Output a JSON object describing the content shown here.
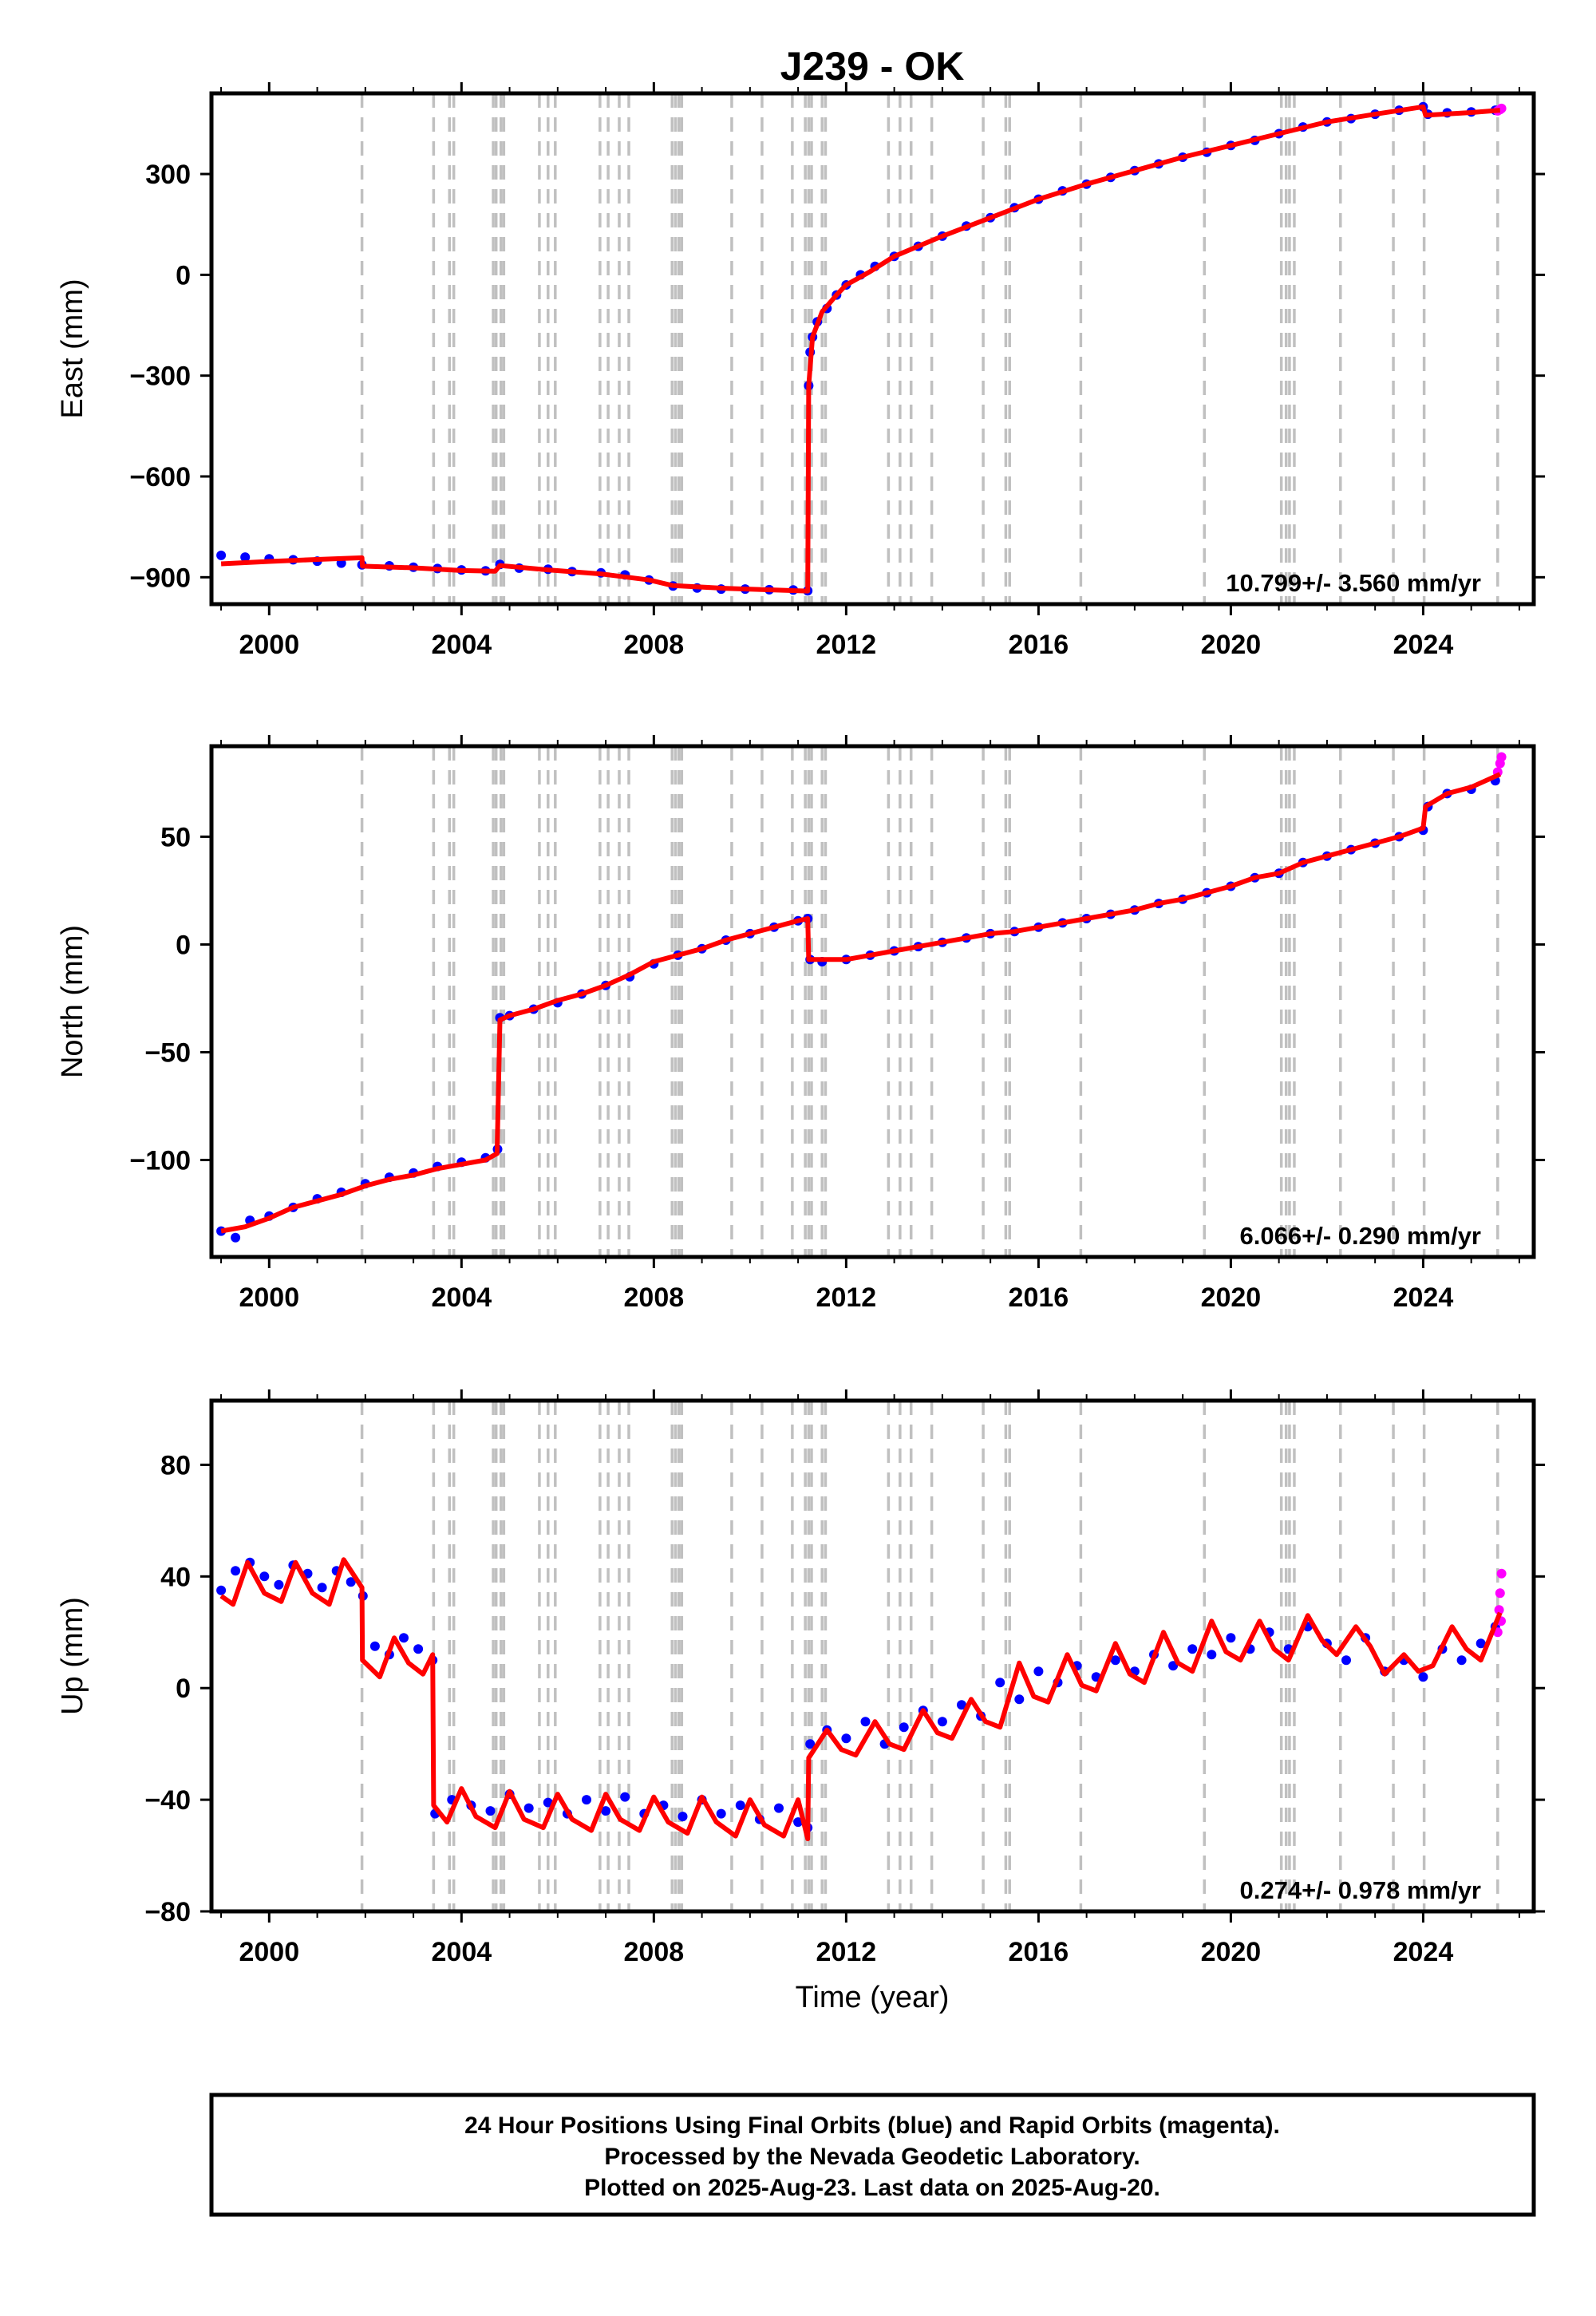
{
  "title": "J239 - OK",
  "xlabel": "Time (year)",
  "footer": {
    "line1": "24 Hour Positions Using Final Orbits (blue) and Rapid Orbits (magenta).",
    "line2": "Processed by the Nevada Geodetic Laboratory.",
    "line3": "Plotted on 2025-Aug-23. Last data on 2025-Aug-20."
  },
  "colors": {
    "final_points": "#0000ff",
    "rapid_points": "#ff00ff",
    "model_line": "#ff0000",
    "event_lines": "#c0c0c0"
  },
  "x_ticks": [
    "2000",
    "2004",
    "2008",
    "2012",
    "2016",
    "2020",
    "2024"
  ],
  "event_years": [
    2001.93,
    2003.42,
    2003.75,
    2003.84,
    2004.66,
    2004.72,
    2004.82,
    2004.88,
    2005.62,
    2005.8,
    2005.95,
    2006.88,
    2007.05,
    2007.28,
    2007.48,
    2008.38,
    2008.45,
    2008.52,
    2008.58,
    2009.62,
    2010.25,
    2010.88,
    2011.15,
    2011.22,
    2011.28,
    2011.5,
    2011.57,
    2012.88,
    2013.12,
    2013.35,
    2013.78,
    2014.85,
    2015.32,
    2015.4,
    2016.88,
    2019.45,
    2021.05,
    2021.15,
    2021.22,
    2021.32,
    2022.28,
    2023.38,
    2024.02,
    2025.55
  ],
  "chart_data": [
    {
      "type": "scatter",
      "component": "East",
      "ylabel": "East (mm)",
      "xlim": [
        1998.8,
        2026.3
      ],
      "ylim": [
        -980,
        540
      ],
      "y_ticks": [
        "300",
        "0",
        "−300",
        "−600",
        "−900"
      ],
      "rate_text": "10.799+/- 3.560 mm/yr",
      "series": [
        {
          "role": "final",
          "x": [
            1999.0,
            1999.5,
            2000.0,
            2000.5,
            2001.0,
            2001.5,
            2001.93,
            2002.5,
            2003.0,
            2003.5,
            2004.0,
            2004.5,
            2004.8,
            2005.2,
            2005.8,
            2006.3,
            2006.9,
            2007.4,
            2007.9,
            2008.4,
            2008.9,
            2009.4,
            2009.9,
            2010.4,
            2010.9,
            2011.2,
            2011.22,
            2011.25,
            2011.3,
            2011.4,
            2011.6,
            2011.8,
            2012.0,
            2012.3,
            2012.6,
            2013.0,
            2013.5,
            2014.0,
            2014.5,
            2015.0,
            2015.5,
            2016.0,
            2016.5,
            2017.0,
            2017.5,
            2018.0,
            2018.5,
            2019.0,
            2019.5,
            2020.0,
            2020.5,
            2021.0,
            2021.5,
            2022.0,
            2022.5,
            2023.0,
            2023.5,
            2024.0,
            2024.1,
            2024.5,
            2025.0,
            2025.5
          ],
          "y": [
            -835,
            -840,
            -845,
            -848,
            -852,
            -858,
            -863,
            -866,
            -870,
            -874,
            -878,
            -881,
            -862,
            -873,
            -876,
            -883,
            -887,
            -893,
            -908,
            -926,
            -932,
            -935,
            -935,
            -937,
            -938,
            -940,
            -330,
            -230,
            -185,
            -140,
            -100,
            -60,
            -30,
            0,
            25,
            55,
            85,
            115,
            145,
            170,
            200,
            225,
            250,
            270,
            290,
            310,
            330,
            350,
            365,
            385,
            400,
            420,
            440,
            455,
            465,
            478,
            490,
            500,
            478,
            482,
            485,
            490
          ]
        },
        {
          "role": "rapid",
          "x": [
            2025.55,
            2025.6,
            2025.63
          ],
          "y": [
            488,
            492,
            495
          ]
        },
        {
          "role": "model",
          "x": [
            1999.0,
            2000.0,
            2001.0,
            2001.93,
            2001.94,
            2003.0,
            2004.0,
            2004.7,
            2004.8,
            2005.8,
            2006.9,
            2007.9,
            2008.4,
            2009.5,
            2010.5,
            2011.2,
            2011.22,
            2011.3,
            2011.5,
            2011.8,
            2012.0,
            2012.5,
            2013.0,
            2014.0,
            2015.0,
            2016.0,
            2017.0,
            2018.0,
            2019.0,
            2020.0,
            2021.0,
            2022.0,
            2023.0,
            2024.0,
            2024.05,
            2025.0,
            2025.6
          ],
          "y": [
            -860,
            -853,
            -847,
            -842,
            -867,
            -872,
            -880,
            -882,
            -865,
            -878,
            -890,
            -908,
            -925,
            -933,
            -938,
            -941,
            -330,
            -185,
            -110,
            -60,
            -30,
            10,
            55,
            115,
            170,
            225,
            270,
            310,
            350,
            385,
            420,
            455,
            478,
            500,
            475,
            483,
            490
          ]
        }
      ]
    },
    {
      "type": "scatter",
      "component": "North",
      "ylabel": "North (mm)",
      "xlim": [
        1998.8,
        2026.3
      ],
      "ylim": [
        -145,
        92
      ],
      "y_ticks": [
        "50",
        "0",
        "−50",
        "−100"
      ],
      "rate_text": "6.066+/- 0.290 mm/yr",
      "series": [
        {
          "role": "final",
          "x": [
            1999.0,
            1999.3,
            1999.6,
            2000.0,
            2000.5,
            2001.0,
            2001.5,
            2002.0,
            2002.5,
            2003.0,
            2003.5,
            2004.0,
            2004.5,
            2004.75,
            2004.8,
            2005.0,
            2005.5,
            2006.0,
            2006.5,
            2007.0,
            2007.5,
            2008.0,
            2008.5,
            2009.0,
            2009.5,
            2010.0,
            2010.5,
            2011.0,
            2011.2,
            2011.25,
            2011.5,
            2012.0,
            2012.5,
            2013.0,
            2013.5,
            2014.0,
            2014.5,
            2015.0,
            2015.5,
            2016.0,
            2016.5,
            2017.0,
            2017.5,
            2018.0,
            2018.5,
            2019.0,
            2019.5,
            2020.0,
            2020.5,
            2021.0,
            2021.5,
            2022.0,
            2022.5,
            2023.0,
            2023.5,
            2024.0,
            2024.1,
            2024.5,
            2025.0,
            2025.5
          ],
          "y": [
            -133,
            -136,
            -128,
            -126,
            -122,
            -118,
            -115,
            -111,
            -108,
            -106,
            -103,
            -101,
            -99,
            -95,
            -34,
            -33,
            -30,
            -27,
            -23,
            -19,
            -15,
            -9,
            -5,
            -2,
            2,
            5,
            8,
            11,
            12,
            -7,
            -8,
            -7,
            -5,
            -3,
            -1,
            1,
            3,
            5,
            6,
            8,
            10,
            12,
            14,
            16,
            19,
            21,
            24,
            27,
            31,
            33,
            38,
            41,
            44,
            47,
            50,
            53,
            64,
            70,
            72,
            76
          ]
        },
        {
          "role": "rapid",
          "x": [
            2025.55,
            2025.6,
            2025.63
          ],
          "y": [
            80,
            84,
            87
          ]
        },
        {
          "role": "model",
          "x": [
            1999.0,
            1999.5,
            2000.0,
            2000.5,
            2001.0,
            2001.5,
            2002.0,
            2002.5,
            2003.0,
            2003.5,
            2004.0,
            2004.5,
            2004.74,
            2004.8,
            2005.0,
            2005.5,
            2006.0,
            2006.5,
            2007.0,
            2007.5,
            2008.0,
            2008.5,
            2009.0,
            2009.5,
            2010.0,
            2010.5,
            2011.0,
            2011.2,
            2011.22,
            2011.5,
            2012.0,
            2012.5,
            2013.0,
            2013.5,
            2014.0,
            2014.5,
            2015.0,
            2015.5,
            2016.0,
            2016.5,
            2017.0,
            2017.5,
            2018.0,
            2018.5,
            2019.0,
            2019.5,
            2020.0,
            2020.5,
            2021.0,
            2021.5,
            2022.0,
            2022.5,
            2023.0,
            2023.5,
            2024.0,
            2024.05,
            2024.5,
            2025.0,
            2025.6
          ],
          "y": [
            -133,
            -131,
            -127,
            -122,
            -119,
            -116,
            -112,
            -109,
            -107,
            -104,
            -102,
            -100,
            -97,
            -35,
            -33,
            -30,
            -26,
            -23,
            -19,
            -14,
            -8,
            -5,
            -2,
            2,
            5,
            8,
            11,
            12,
            -7,
            -7,
            -7,
            -5,
            -3,
            -1,
            1,
            3,
            5,
            6,
            8,
            10,
            12,
            14,
            16,
            19,
            21,
            24,
            27,
            31,
            33,
            38,
            41,
            44,
            47,
            50,
            54,
            64,
            70,
            73,
            79
          ]
        }
      ]
    },
    {
      "type": "scatter",
      "component": "Up",
      "ylabel": "Up (mm)",
      "xlim": [
        1998.8,
        2026.3
      ],
      "ylim": [
        -80,
        103
      ],
      "y_ticks": [
        "80",
        "40",
        "0",
        "−40",
        "−80"
      ],
      "rate_text": "0.274+/- 0.978 mm/yr",
      "series": [
        {
          "role": "final",
          "x": [
            1999.0,
            1999.3,
            1999.6,
            1999.9,
            2000.2,
            2000.5,
            2000.8,
            2001.1,
            2001.4,
            2001.7,
            2001.95,
            2002.2,
            2002.5,
            2002.8,
            2003.1,
            2003.4,
            2003.45,
            2003.8,
            2004.2,
            2004.6,
            2005.0,
            2005.4,
            2005.8,
            2006.2,
            2006.6,
            2007.0,
            2007.4,
            2007.8,
            2008.2,
            2008.6,
            2009.0,
            2009.4,
            2009.8,
            2010.2,
            2010.6,
            2011.0,
            2011.2,
            2011.25,
            2011.6,
            2012.0,
            2012.4,
            2012.8,
            2013.2,
            2013.6,
            2014.0,
            2014.4,
            2014.8,
            2015.2,
            2015.6,
            2016.0,
            2016.4,
            2016.8,
            2017.2,
            2017.6,
            2018.0,
            2018.4,
            2018.8,
            2019.2,
            2019.6,
            2020.0,
            2020.4,
            2020.8,
            2021.2,
            2021.6,
            2022.0,
            2022.4,
            2022.8,
            2023.2,
            2023.6,
            2024.0,
            2024.4,
            2024.8,
            2025.2,
            2025.5
          ],
          "y": [
            35,
            42,
            45,
            40,
            37,
            44,
            41,
            36,
            42,
            38,
            33,
            15,
            12,
            18,
            14,
            10,
            -45,
            -40,
            -42,
            -44,
            -38,
            -43,
            -41,
            -45,
            -40,
            -44,
            -39,
            -45,
            -42,
            -46,
            -40,
            -45,
            -42,
            -47,
            -43,
            -48,
            -50,
            -20,
            -15,
            -18,
            -12,
            -20,
            -14,
            -8,
            -12,
            -6,
            -10,
            2,
            -4,
            6,
            2,
            8,
            4,
            10,
            6,
            12,
            8,
            14,
            12,
            18,
            14,
            20,
            14,
            22,
            16,
            10,
            18,
            6,
            10,
            4,
            14,
            10,
            16,
            22
          ]
        },
        {
          "role": "rapid",
          "x": [
            2025.55,
            2025.58,
            2025.6,
            2025.62,
            2025.63
          ],
          "y": [
            20,
            28,
            34,
            24,
            41
          ]
        },
        {
          "role": "model",
          "x": [
            1999.0,
            1999.25,
            1999.55,
            1999.9,
            2000.25,
            2000.55,
            2000.9,
            2001.25,
            2001.55,
            2001.93,
            2001.94,
            2002.3,
            2002.6,
            2002.9,
            2003.2,
            2003.4,
            2003.42,
            2003.7,
            2004.0,
            2004.3,
            2004.7,
            2005.0,
            2005.3,
            2005.7,
            2006.0,
            2006.3,
            2006.7,
            2007.0,
            2007.3,
            2007.7,
            2008.0,
            2008.3,
            2008.7,
            2009.0,
            2009.3,
            2009.7,
            2010.0,
            2010.3,
            2010.7,
            2011.0,
            2011.2,
            2011.22,
            2011.6,
            2011.9,
            2012.2,
            2012.6,
            2012.9,
            2013.2,
            2013.6,
            2013.9,
            2014.2,
            2014.6,
            2014.9,
            2015.2,
            2015.6,
            2015.9,
            2016.2,
            2016.6,
            2016.9,
            2017.2,
            2017.6,
            2017.9,
            2018.2,
            2018.6,
            2018.9,
            2019.2,
            2019.6,
            2019.9,
            2020.2,
            2020.6,
            2020.9,
            2021.2,
            2021.6,
            2021.9,
            2022.2,
            2022.6,
            2022.9,
            2023.2,
            2023.6,
            2023.9,
            2024.2,
            2024.6,
            2024.9,
            2025.2,
            2025.6
          ],
          "y": [
            33,
            30,
            45,
            34,
            31,
            45,
            34,
            30,
            46,
            36,
            10,
            4,
            18,
            9,
            5,
            12,
            -42,
            -48,
            -36,
            -46,
            -50,
            -37,
            -47,
            -50,
            -38,
            -47,
            -51,
            -38,
            -47,
            -51,
            -39,
            -48,
            -52,
            -39,
            -48,
            -53,
            -40,
            -49,
            -53,
            -40,
            -54,
            -25,
            -15,
            -22,
            -24,
            -12,
            -20,
            -22,
            -8,
            -16,
            -18,
            -4,
            -12,
            -14,
            9,
            -3,
            -5,
            12,
            1,
            -1,
            16,
            5,
            2,
            20,
            9,
            6,
            24,
            13,
            10,
            24,
            14,
            10,
            26,
            17,
            12,
            22,
            15,
            5,
            12,
            6,
            8,
            22,
            14,
            10,
            27
          ]
        }
      ]
    }
  ]
}
